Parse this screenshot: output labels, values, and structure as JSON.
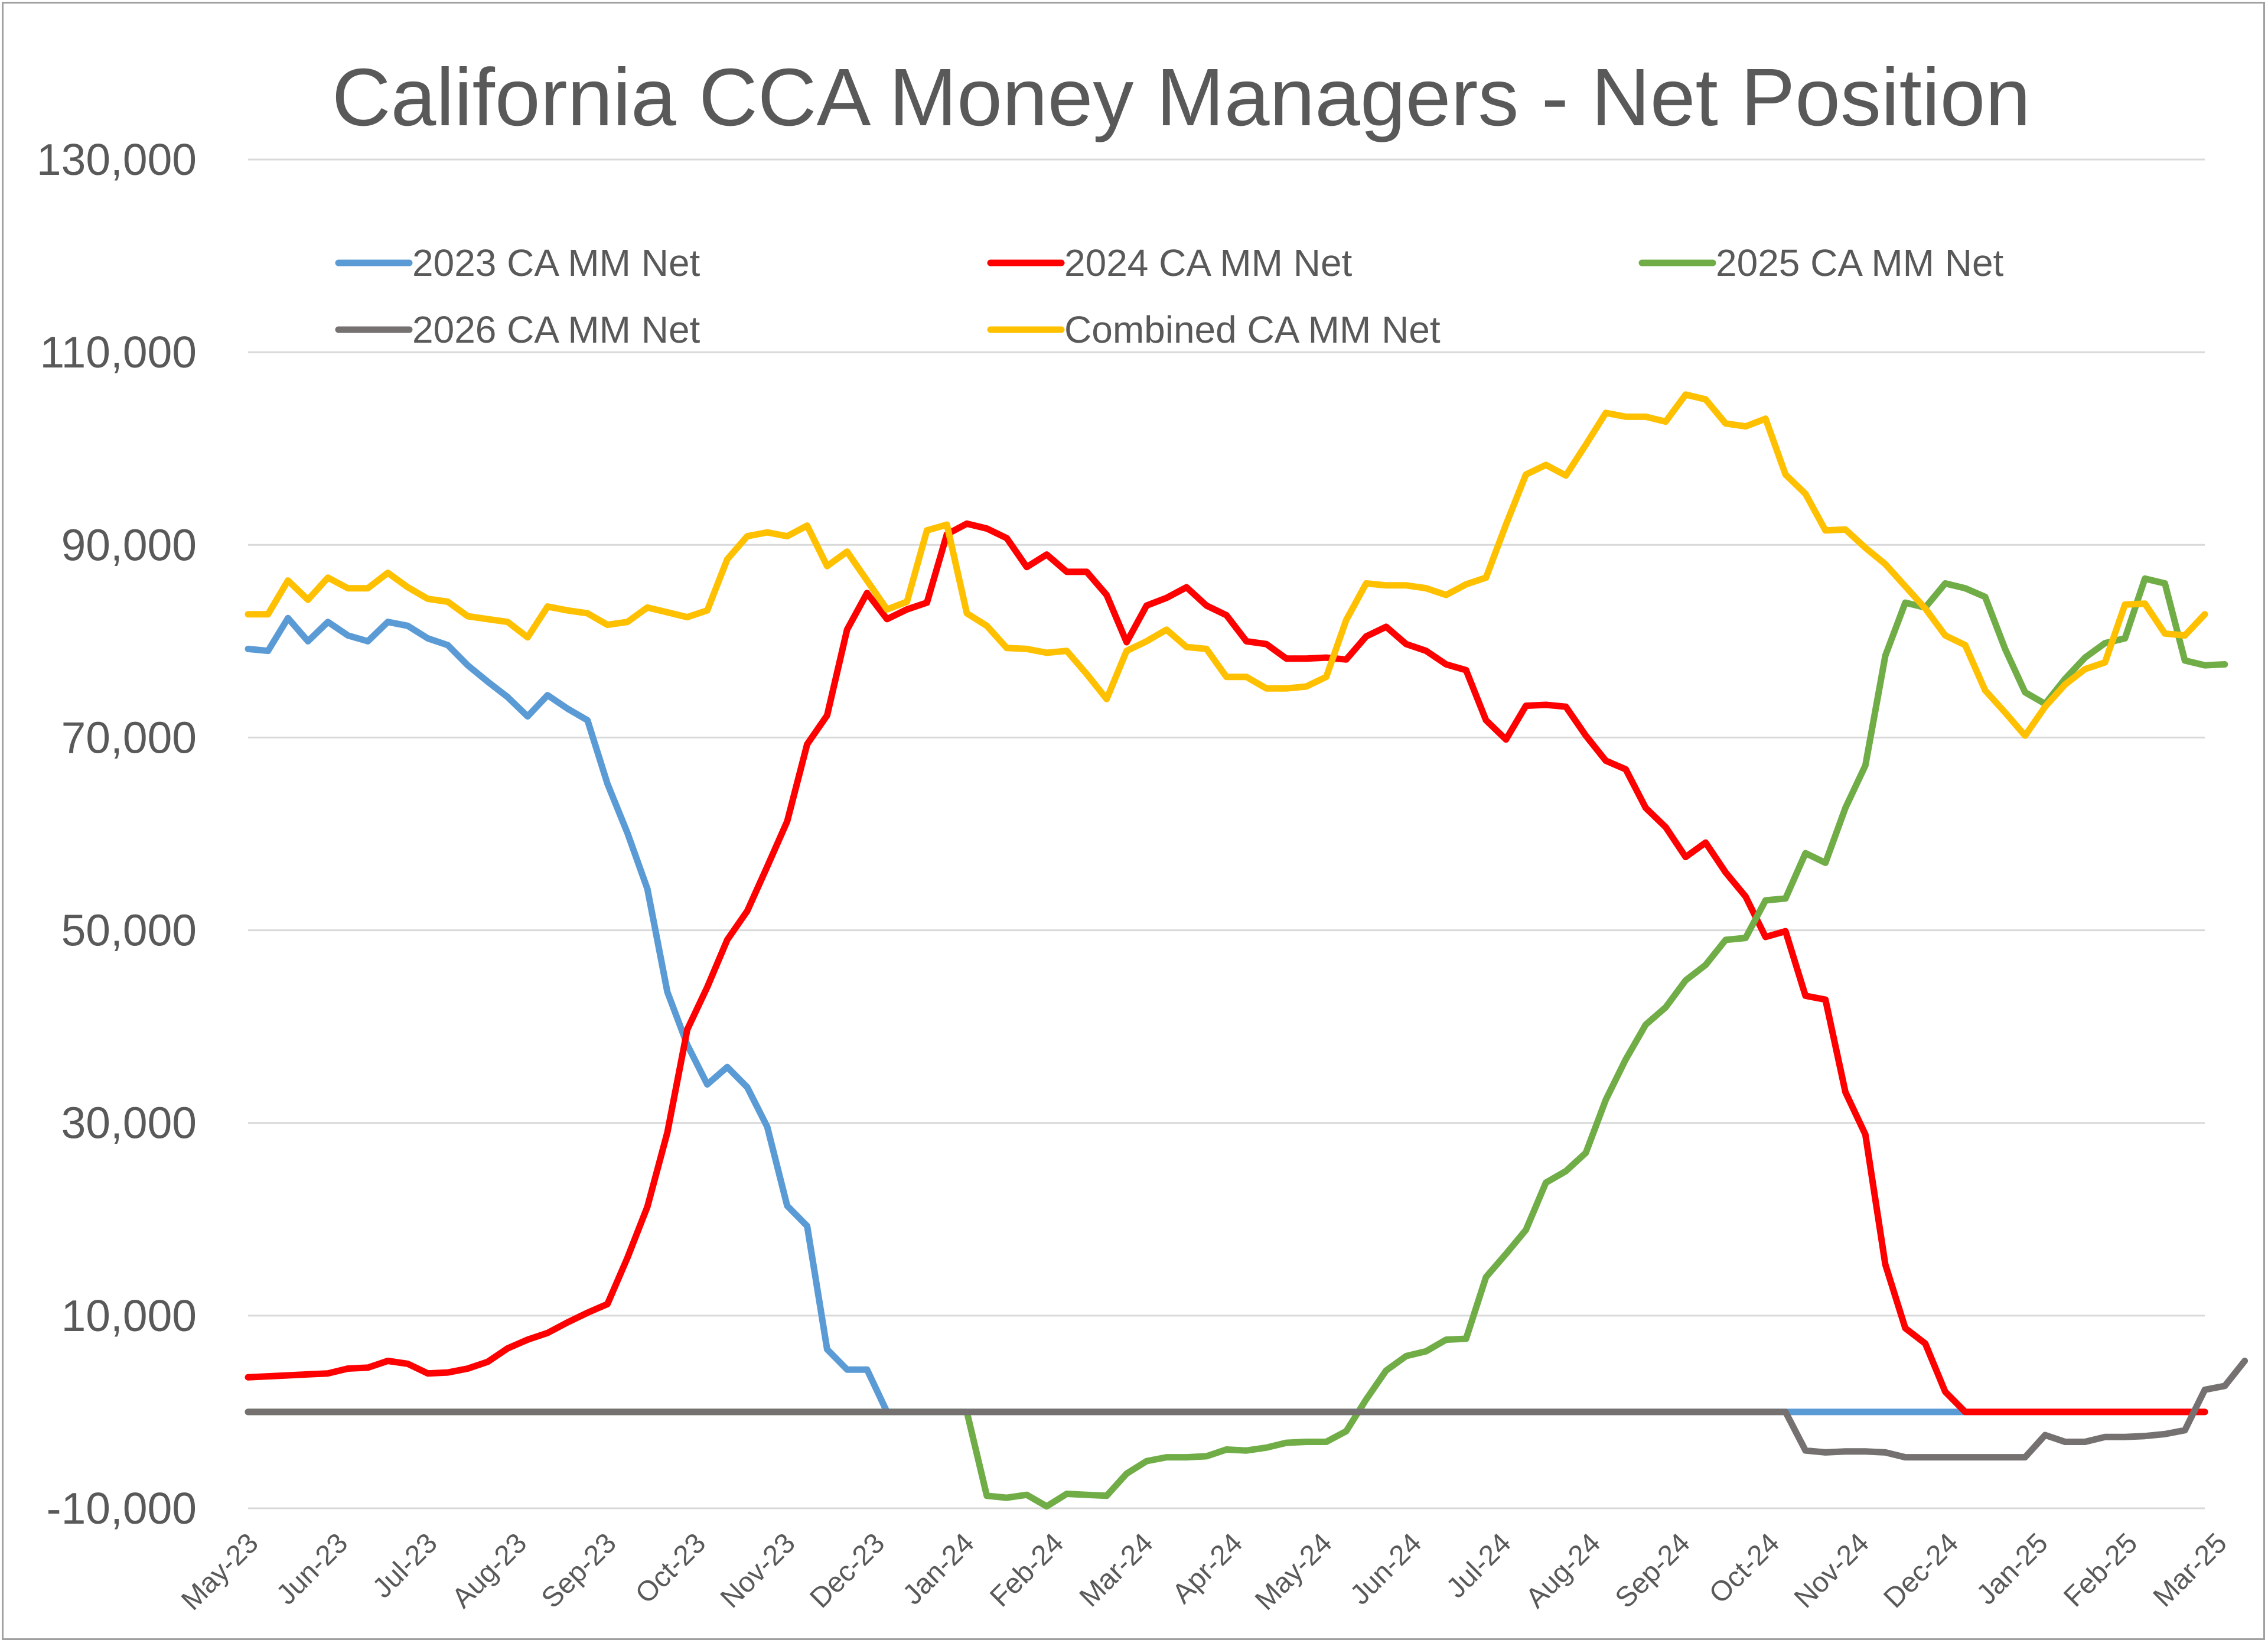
{
  "chart_data": {
    "type": "line",
    "title": "California CCA Money Managers - Net Position",
    "xlabel": "",
    "ylabel": "",
    "ylim": [
      -10000,
      130000
    ],
    "y_ticks": [
      "-10,000",
      "10,000",
      "30,000",
      "50,000",
      "70,000",
      "90,000",
      "110,000",
      "130,000"
    ],
    "y_tick_values": [
      -10000,
      10000,
      30000,
      50000,
      70000,
      90000,
      110000,
      130000
    ],
    "x_tick_labels": [
      "May-23",
      "Jun-23",
      "Jul-23",
      "Aug-23",
      "Sep-23",
      "Oct-23",
      "Nov-23",
      "Dec-23",
      "Jan-24",
      "Feb-24",
      "Mar-24",
      "Apr-24",
      "May-24",
      "Jun-24",
      "Jul-24",
      "Aug-24",
      "Sep-24",
      "Oct-24",
      "Nov-24",
      "Dec-24",
      "Jan-25",
      "Feb-25",
      "Mar-25"
    ],
    "x_range_weeks": [
      0,
      98
    ],
    "grid": "horizontal",
    "legend_position": "top",
    "series": [
      {
        "name": "2023 CA MM Net",
        "color": "#5b9bd5",
        "values": [
          79200,
          79000,
          82400,
          80000,
          82000,
          80600,
          80000,
          82000,
          81600,
          80300,
          79600,
          77500,
          75800,
          74200,
          72200,
          74400,
          73000,
          71800,
          65200,
          60100,
          54300,
          43600,
          38100,
          34000,
          35800,
          33700,
          29600,
          21400,
          19300,
          6500,
          4400,
          4400,
          0,
          0,
          0,
          0,
          0,
          0,
          0,
          0,
          0,
          0,
          0,
          0,
          0,
          0,
          0,
          0,
          0,
          0,
          0,
          0,
          0,
          0,
          0,
          0,
          0,
          0,
          0,
          0,
          0,
          0,
          0,
          0,
          0,
          0,
          0,
          0,
          0,
          0,
          0,
          0,
          0,
          0,
          0,
          0,
          0,
          0,
          0,
          0,
          0,
          0,
          0,
          0,
          0,
          0,
          0,
          0,
          0,
          0,
          0,
          0,
          0,
          0,
          0,
          0,
          0,
          0,
          0
        ]
      },
      {
        "name": "2024 CA MM Net",
        "color": "#ff0000",
        "values": [
          3600,
          3700,
          3800,
          3900,
          4000,
          4500,
          4600,
          5300,
          5000,
          4000,
          4100,
          4500,
          5200,
          6600,
          7500,
          8200,
          9300,
          10300,
          11200,
          16000,
          21300,
          29000,
          39700,
          44100,
          49000,
          52000,
          56600,
          61300,
          69300,
          72300,
          81200,
          85000,
          82300,
          83300,
          84000,
          91100,
          92200,
          91700,
          90700,
          87700,
          89000,
          87200,
          87200,
          84800,
          79900,
          83700,
          84500,
          85600,
          83700,
          82700,
          80000,
          79700,
          78200,
          78200,
          78300,
          78100,
          80500,
          81500,
          79700,
          79000,
          77600,
          77000,
          71800,
          69800,
          73300,
          73400,
          73200,
          70200,
          67600,
          66700,
          62700,
          60700,
          57600,
          59100,
          56000,
          53500,
          49300,
          49900,
          43200,
          42800,
          33200,
          28800,
          15300,
          8700,
          7100,
          2100,
          0,
          0,
          0,
          0,
          0,
          0,
          0,
          0,
          0,
          0,
          0,
          0,
          0
        ]
      },
      {
        "name": "2025 CA MM Net",
        "color": "#70ad47",
        "values": [
          0,
          0,
          0,
          0,
          0,
          0,
          0,
          0,
          0,
          0,
          0,
          0,
          0,
          0,
          0,
          0,
          0,
          0,
          0,
          0,
          0,
          0,
          0,
          0,
          0,
          0,
          0,
          0,
          0,
          0,
          0,
          0,
          0,
          0,
          0,
          0,
          0,
          -8700,
          -8900,
          -8600,
          -9800,
          -8500,
          -8600,
          -8700,
          -6400,
          -5100,
          -4700,
          -4700,
          -4600,
          -3900,
          -4000,
          -3700,
          -3200,
          -3100,
          -3100,
          -2000,
          1300,
          4300,
          5800,
          6300,
          7500,
          7600,
          14000,
          16400,
          18900,
          23800,
          25000,
          26900,
          32400,
          36600,
          40200,
          42000,
          44800,
          46400,
          49000,
          49200,
          53100,
          53300,
          58000,
          57000,
          62700,
          67100,
          78500,
          84000,
          83500,
          86000,
          85500,
          84600,
          79200,
          74700,
          73500,
          76100,
          78300,
          79800,
          80300,
          86500,
          86000,
          78000,
          77500,
          77600
        ]
      },
      {
        "name": "2026 CA MM Net",
        "color": "#757171",
        "values": [
          0,
          0,
          0,
          0,
          0,
          0,
          0,
          0,
          0,
          0,
          0,
          0,
          0,
          0,
          0,
          0,
          0,
          0,
          0,
          0,
          0,
          0,
          0,
          0,
          0,
          0,
          0,
          0,
          0,
          0,
          0,
          0,
          0,
          0,
          0,
          0,
          0,
          0,
          0,
          0,
          0,
          0,
          0,
          0,
          0,
          0,
          0,
          0,
          0,
          0,
          0,
          0,
          0,
          0,
          0,
          0,
          0,
          0,
          0,
          0,
          0,
          0,
          0,
          0,
          0,
          0,
          0,
          0,
          0,
          0,
          0,
          0,
          0,
          0,
          0,
          0,
          0,
          0,
          -4000,
          -4200,
          -4100,
          -4100,
          -4200,
          -4700,
          -4700,
          -4700,
          -4700,
          -4700,
          -4700,
          -4700,
          -2400,
          -3100,
          -3100,
          -2600,
          -2600,
          -2500,
          -2300,
          -1900,
          2300,
          2700,
          5300
        ]
      },
      {
        "name": "Combined CA MM Net",
        "color": "#ffc000",
        "values": [
          82800,
          82800,
          86300,
          84300,
          86600,
          85500,
          85500,
          87100,
          85600,
          84400,
          84100,
          82600,
          82300,
          82000,
          80400,
          83600,
          83200,
          82900,
          81700,
          82000,
          83500,
          83000,
          82500,
          83200,
          88500,
          90900,
          91300,
          90900,
          92000,
          87800,
          89300,
          86300,
          83300,
          84100,
          91500,
          92100,
          82900,
          81600,
          79300,
          79200,
          78800,
          79000,
          76600,
          74000,
          79000,
          80000,
          81200,
          79400,
          79200,
          76300,
          76300,
          75100,
          75100,
          75300,
          76300,
          82200,
          86000,
          85800,
          85800,
          85500,
          84800,
          85900,
          86600,
          92100,
          97300,
          98300,
          97200,
          100400,
          103700,
          103300,
          103300,
          102800,
          105600,
          105100,
          102600,
          102300,
          103100,
          97300,
          95300,
          91500,
          91600,
          89700,
          88000,
          85700,
          83400,
          80600,
          79600,
          74900,
          72600,
          70200,
          73200,
          75500,
          77100,
          77800,
          83800,
          83900,
          80800,
          80600,
          82800
        ]
      }
    ]
  }
}
